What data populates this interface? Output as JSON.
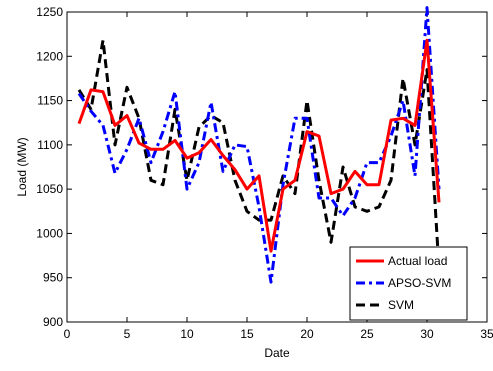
{
  "chart_data": {
    "type": "line",
    "title": "",
    "xlabel": "Date",
    "ylabel": "Load (MW)",
    "xlim": [
      0,
      35
    ],
    "ylim": [
      900,
      1250
    ],
    "xticks": [
      0,
      5,
      10,
      15,
      20,
      25,
      30,
      35
    ],
    "yticks": [
      900,
      950,
      1000,
      1050,
      1100,
      1150,
      1200,
      1250
    ],
    "grid": false,
    "legend_position": "bottom-right",
    "series": [
      {
        "name": "Actual load",
        "color": "#ff0000",
        "style": "solid",
        "x": [
          1,
          2,
          3,
          4,
          5,
          6,
          7,
          8,
          9,
          10,
          11,
          12,
          13,
          14,
          15,
          16,
          17,
          18,
          19,
          20,
          21,
          22,
          23,
          24,
          25,
          26,
          27,
          28,
          29,
          30,
          31
        ],
        "y": [
          1124,
          1162,
          1160,
          1122,
          1133,
          1102,
          1095,
          1095,
          1105,
          1085,
          1091,
          1106,
          1088,
          1072,
          1050,
          1065,
          980,
          1050,
          1060,
          1115,
          1110,
          1045,
          1050,
          1070,
          1055,
          1055,
          1128,
          1130,
          1122,
          1218,
          1035
        ]
      },
      {
        "name": "APSO-SVM",
        "color": "#0000ff",
        "style": "dashdot",
        "x": [
          1,
          2,
          3,
          4,
          5,
          6,
          7,
          8,
          9,
          10,
          11,
          12,
          13,
          14,
          15,
          16,
          17,
          18,
          19,
          20,
          21,
          22,
          23,
          24,
          25,
          26,
          27,
          28,
          29,
          30,
          31
        ],
        "y": [
          1158,
          1138,
          1122,
          1068,
          1095,
          1130,
          1080,
          1115,
          1160,
          1050,
          1080,
          1148,
          1070,
          1100,
          1098,
          1030,
          945,
          1055,
          1130,
          1130,
          1040,
          1040,
          1020,
          1040,
          1080,
          1080,
          1110,
          1150,
          1065,
          1255,
          1050
        ]
      },
      {
        "name": "SVM",
        "color": "#000000",
        "style": "dashed",
        "x": [
          1,
          2,
          3,
          4,
          5,
          6,
          7,
          8,
          9,
          10,
          11,
          12,
          13,
          14,
          15,
          16,
          17,
          18,
          19,
          20,
          21,
          22,
          23,
          24,
          25,
          26,
          27,
          28,
          29,
          30,
          31
        ],
        "y": [
          1162,
          1140,
          1218,
          1100,
          1165,
          1130,
          1060,
          1055,
          1140,
          1060,
          1120,
          1133,
          1125,
          1060,
          1025,
          1015,
          1015,
          1065,
          1045,
          1150,
          1060,
          990,
          1075,
          1030,
          1025,
          1030,
          1060,
          1175,
          1100,
          1185,
          960
        ]
      }
    ]
  }
}
